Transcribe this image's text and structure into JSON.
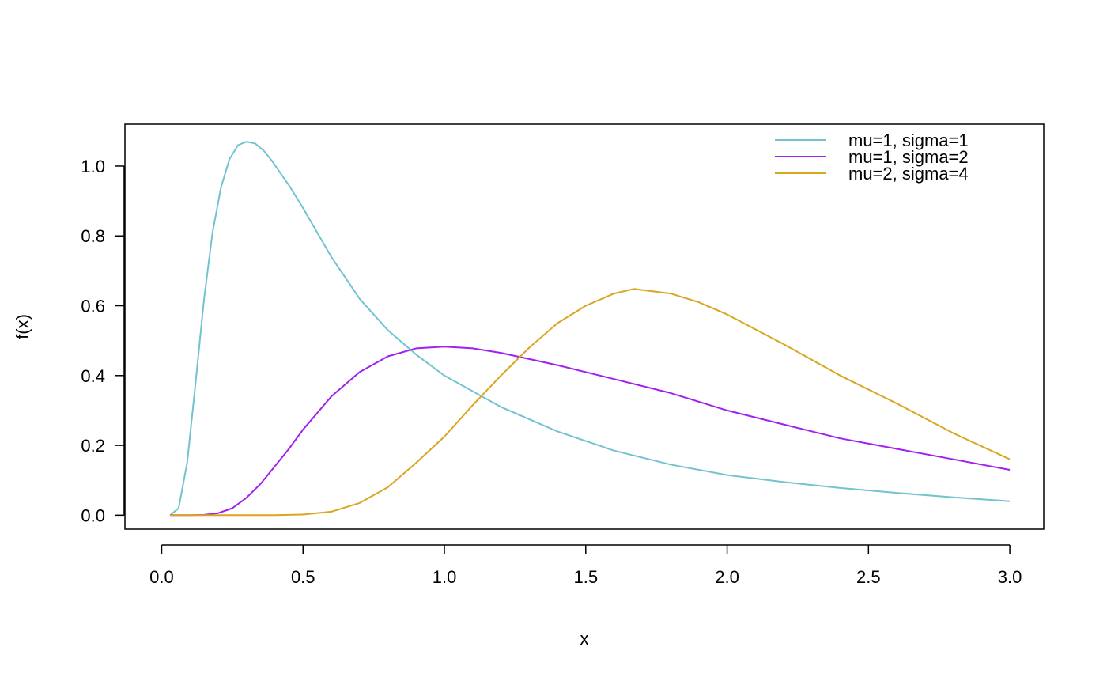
{
  "chart_data": {
    "type": "line",
    "title": "",
    "xlabel": "x",
    "ylabel": "f(x)",
    "xlim": [
      -0.13,
      3.12
    ],
    "ylim": [
      -0.04,
      1.12
    ],
    "x_ticks": [
      0.0,
      0.5,
      1.0,
      1.5,
      2.0,
      2.5,
      3.0
    ],
    "x_tick_labels": [
      "0.0",
      "0.5",
      "1.0",
      "1.5",
      "2.0",
      "2.5",
      "3.0"
    ],
    "y_ticks": [
      0.0,
      0.2,
      0.4,
      0.6,
      0.8,
      1.0
    ],
    "y_tick_labels": [
      "0.0",
      "0.2",
      "0.4",
      "0.6",
      "0.8",
      "1.0"
    ],
    "grid": false,
    "legend_position": "top-right",
    "series": [
      {
        "name": "mu=1, sigma=1",
        "color": "#72C3CF",
        "x": [
          0.03,
          0.06,
          0.09,
          0.12,
          0.15,
          0.18,
          0.21,
          0.24,
          0.27,
          0.3,
          0.33,
          0.36,
          0.39,
          0.42,
          0.45,
          0.5,
          0.6,
          0.7,
          0.8,
          0.9,
          1.0,
          1.2,
          1.4,
          1.6,
          1.8,
          2.0,
          2.2,
          2.4,
          2.6,
          2.8,
          3.0
        ],
        "values": [
          0.0,
          0.02,
          0.15,
          0.38,
          0.62,
          0.81,
          0.94,
          1.02,
          1.06,
          1.07,
          1.065,
          1.045,
          1.015,
          0.98,
          0.945,
          0.88,
          0.74,
          0.62,
          0.53,
          0.46,
          0.4,
          0.31,
          0.24,
          0.185,
          0.145,
          0.115,
          0.095,
          0.078,
          0.064,
          0.051,
          0.04
        ]
      },
      {
        "name": "mu=1, sigma=2",
        "color": "#A020F0",
        "x": [
          0.03,
          0.1,
          0.15,
          0.2,
          0.25,
          0.3,
          0.35,
          0.4,
          0.45,
          0.5,
          0.6,
          0.7,
          0.8,
          0.9,
          1.0,
          1.1,
          1.2,
          1.4,
          1.6,
          1.8,
          2.0,
          2.2,
          2.4,
          2.6,
          2.8,
          3.0
        ],
        "values": [
          0.0,
          0.0,
          0.001,
          0.006,
          0.02,
          0.05,
          0.09,
          0.14,
          0.19,
          0.245,
          0.34,
          0.41,
          0.455,
          0.478,
          0.483,
          0.478,
          0.465,
          0.43,
          0.39,
          0.35,
          0.3,
          0.26,
          0.22,
          0.19,
          0.16,
          0.13
        ]
      },
      {
        "name": "mu=2, sigma=4",
        "color": "#DAA520",
        "x": [
          0.03,
          0.2,
          0.4,
          0.5,
          0.6,
          0.7,
          0.8,
          0.9,
          1.0,
          1.1,
          1.2,
          1.3,
          1.4,
          1.5,
          1.6,
          1.67,
          1.8,
          1.9,
          2.0,
          2.2,
          2.4,
          2.6,
          2.8,
          3.0
        ],
        "values": [
          0.0,
          0.0,
          0.0,
          0.002,
          0.01,
          0.035,
          0.08,
          0.15,
          0.225,
          0.315,
          0.4,
          0.48,
          0.55,
          0.6,
          0.635,
          0.648,
          0.635,
          0.61,
          0.575,
          0.49,
          0.4,
          0.32,
          0.235,
          0.16
        ]
      }
    ]
  }
}
